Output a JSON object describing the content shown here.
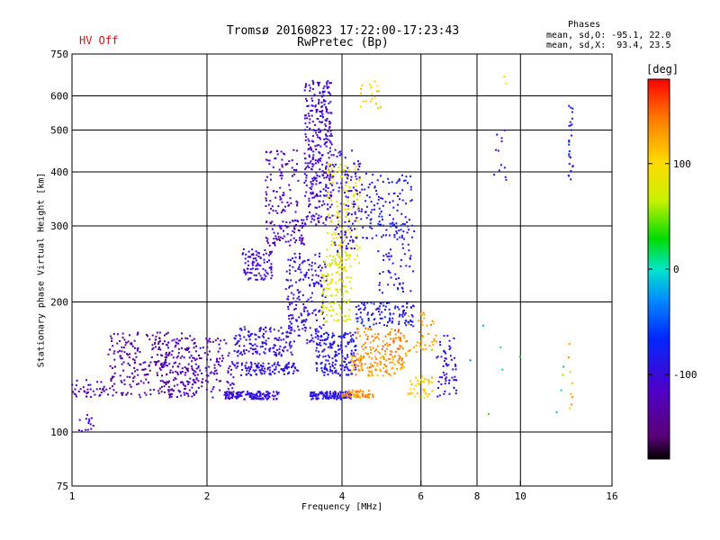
{
  "status": {
    "hv_label": "HV Off",
    "hv_color": "#d01010"
  },
  "header": {
    "title_line1": "Tromsø 20160823 17:22:00-17:23:43",
    "title_line2": "RwPretec (Bp)"
  },
  "phases_box": {
    "title": "Phases",
    "line_o": "mean, sd,O: -95.1, 22.0",
    "line_x": "mean, sd,X:  93.4, 23.5"
  },
  "colorbar": {
    "label": "[deg]",
    "range": [
      -180,
      180
    ],
    "ticks": [
      {
        "value": 100,
        "label": "100"
      },
      {
        "value": 0,
        "label": "0"
      },
      {
        "value": -100,
        "label": "-100"
      }
    ]
  },
  "chart_data": {
    "type": "scatter",
    "title": "Tromsø 20160823 17:22:00-17:23:43",
    "subtitle": "RwPretec (Bp)",
    "xlabel": "Frequency [MHz]",
    "ylabel": "Stationary phase Virtual Height [km]",
    "x_scale": "log",
    "y_scale": "log",
    "xlim": [
      1,
      16
    ],
    "ylim": [
      75,
      750
    ],
    "grid": true,
    "x_ticks": [
      {
        "value": 1,
        "label": "1"
      },
      {
        "value": 2,
        "label": "2"
      },
      {
        "value": 4,
        "label": "4"
      },
      {
        "value": 6,
        "label": "6"
      },
      {
        "value": 8,
        "label": "8"
      },
      {
        "value": 10,
        "label": "10"
      },
      {
        "value": 16,
        "label": "16"
      }
    ],
    "x_grid": [
      2,
      4,
      6,
      8,
      10
    ],
    "y_ticks": [
      {
        "value": 75,
        "label": "75"
      },
      {
        "value": 100,
        "label": "100"
      },
      {
        "value": 200,
        "label": "200"
      },
      {
        "value": 300,
        "label": "300"
      },
      {
        "value": 400,
        "label": "400"
      },
      {
        "value": 500,
        "label": "500"
      },
      {
        "value": 600,
        "label": "600"
      },
      {
        "value": 750,
        "label": "750"
      }
    ],
    "y_grid": [
      100,
      200,
      300,
      400,
      500,
      600
    ],
    "clusters": [
      {
        "f": [
          1.0,
          1.2
        ],
        "h": [
          120,
          132
        ],
        "phase": [
          -130,
          -110
        ],
        "n": 40
      },
      {
        "f": [
          1.0,
          1.15
        ],
        "h": [
          100,
          110
        ],
        "phase": [
          -120,
          -100
        ],
        "n": 15
      },
      {
        "f": [
          1.2,
          1.9
        ],
        "h": [
          120,
          170
        ],
        "phase": [
          -150,
          -125
        ],
        "n": 260
      },
      {
        "f": [
          1.6,
          2.3
        ],
        "h": [
          120,
          165
        ],
        "phase": [
          -135,
          -110
        ],
        "n": 200
      },
      {
        "f": [
          2.2,
          2.9
        ],
        "h": [
          119,
          124
        ],
        "phase": [
          -110,
          -90
        ],
        "n": 130
      },
      {
        "f": [
          2.3,
          3.2
        ],
        "h": [
          135,
          145
        ],
        "phase": [
          -110,
          -80
        ],
        "n": 110
      },
      {
        "f": [
          2.3,
          3.1
        ],
        "h": [
          150,
          175
        ],
        "phase": [
          -110,
          -85
        ],
        "n": 140
      },
      {
        "f": [
          2.4,
          2.8
        ],
        "h": [
          225,
          265
        ],
        "phase": [
          -115,
          -95
        ],
        "n": 90
      },
      {
        "f": [
          2.7,
          3.3
        ],
        "h": [
          270,
          310
        ],
        "phase": [
          -130,
          -110
        ],
        "n": 80
      },
      {
        "f": [
          2.7,
          3.2
        ],
        "h": [
          320,
          450
        ],
        "phase": [
          -135,
          -110
        ],
        "n": 90
      },
      {
        "f": [
          3.0,
          3.7
        ],
        "h": [
          160,
          260
        ],
        "phase": [
          -110,
          -85
        ],
        "n": 200
      },
      {
        "f": [
          3.3,
          3.8
        ],
        "h": [
          300,
          650
        ],
        "phase": [
          -120,
          -95
        ],
        "n": 330
      },
      {
        "f": [
          3.4,
          4.2
        ],
        "h": [
          119,
          124
        ],
        "phase": [
          -105,
          -80
        ],
        "n": 130
      },
      {
        "f": [
          3.5,
          4.3
        ],
        "h": [
          135,
          170
        ],
        "phase": [
          -100,
          -75
        ],
        "n": 180
      },
      {
        "f": [
          3.6,
          4.2
        ],
        "h": [
          180,
          260
        ],
        "phase": [
          60,
          100
        ],
        "n": 130
      },
      {
        "f": [
          3.7,
          4.4
        ],
        "h": [
          240,
          420
        ],
        "phase": [
          80,
          110
        ],
        "n": 130
      },
      {
        "f": [
          3.8,
          4.4
        ],
        "h": [
          260,
          450
        ],
        "phase": [
          -110,
          -85
        ],
        "n": 110
      },
      {
        "f": [
          4.0,
          4.7
        ],
        "h": [
          120,
          125
        ],
        "phase": [
          120,
          150
        ],
        "n": 60
      },
      {
        "f": [
          4.2,
          5.5
        ],
        "h": [
          135,
          150
        ],
        "phase": [
          110,
          150
        ],
        "n": 120
      },
      {
        "f": [
          4.3,
          5.6
        ],
        "h": [
          150,
          175
        ],
        "phase": [
          120,
          160
        ],
        "n": 90
      },
      {
        "f": [
          4.3,
          5.8
        ],
        "h": [
          175,
          200
        ],
        "phase": [
          -100,
          -70
        ],
        "n": 110
      },
      {
        "f": [
          4.4,
          5.8
        ],
        "h": [
          280,
          400
        ],
        "phase": [
          -100,
          -70
        ],
        "n": 130
      },
      {
        "f": [
          4.4,
          4.9
        ],
        "h": [
          560,
          650
        ],
        "phase": [
          90,
          120
        ],
        "n": 20
      },
      {
        "f": [
          4.8,
          5.8
        ],
        "h": [
          210,
          280
        ],
        "phase": [
          -100,
          -80
        ],
        "n": 50
      },
      {
        "f": [
          5.6,
          6.4
        ],
        "h": [
          120,
          135
        ],
        "phase": [
          90,
          130
        ],
        "n": 40
      },
      {
        "f": [
          5.6,
          6.5
        ],
        "h": [
          150,
          190
        ],
        "phase": [
          110,
          140
        ],
        "n": 40
      },
      {
        "f": [
          6.5,
          7.2
        ],
        "h": [
          120,
          170
        ],
        "phase": [
          -110,
          -90
        ],
        "n": 60
      },
      {
        "f": [
          8.7,
          9.3
        ],
        "h": [
          380,
          510
        ],
        "phase": [
          -120,
          -100
        ],
        "n": 12
      },
      {
        "f": [
          9.2,
          9.5
        ],
        "h": [
          640,
          665
        ],
        "phase": [
          95,
          110
        ],
        "n": 2
      },
      {
        "f": [
          12.8,
          13.1
        ],
        "h": [
          380,
          580
        ],
        "phase": [
          -110,
          -60
        ],
        "n": 25
      },
      {
        "f": [
          12.8,
          13.1
        ],
        "h": [
          105,
          170
        ],
        "phase": [
          90,
          140
        ],
        "n": 8
      },
      {
        "f": [
          7.5,
          12.5
        ],
        "h": [
          110,
          200
        ],
        "phase": [
          -30,
          60
        ],
        "n": 10
      }
    ]
  }
}
